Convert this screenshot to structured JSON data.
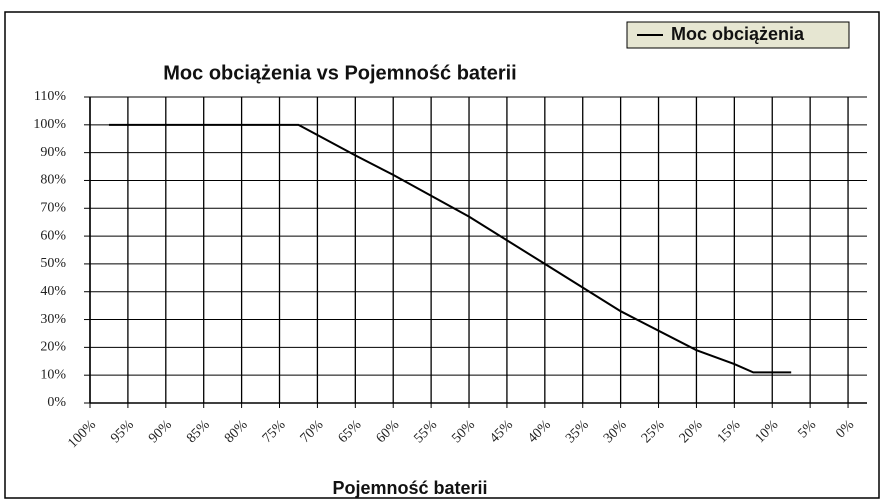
{
  "chart_data": {
    "type": "line",
    "title": "Moc obciążenia vs Pojemność baterii",
    "x_label": "Pojemność baterii",
    "series": [
      {
        "name": "Moc obciążenia",
        "color": "#000000",
        "x": [
          97.5,
          72.5,
          65,
          60,
          50,
          40,
          30,
          20,
          15,
          12.5,
          7.5
        ],
        "values": [
          100,
          100,
          89,
          82,
          67,
          50,
          33,
          19,
          14,
          11,
          11
        ]
      }
    ],
    "xlim": [
      100,
      -2.5
    ],
    "xticks": [
      {
        "value": 100,
        "label": "100%"
      },
      {
        "value": 95,
        "label": "95%"
      },
      {
        "value": 90,
        "label": "90%"
      },
      {
        "value": 85,
        "label": "85%"
      },
      {
        "value": 80,
        "label": "80%"
      },
      {
        "value": 75,
        "label": "75%"
      },
      {
        "value": 70,
        "label": "70%"
      },
      {
        "value": 65,
        "label": "65%"
      },
      {
        "value": 60,
        "label": "60%"
      },
      {
        "value": 55,
        "label": "55%"
      },
      {
        "value": 50,
        "label": "50%"
      },
      {
        "value": 45,
        "label": "45%"
      },
      {
        "value": 40,
        "label": "40%"
      },
      {
        "value": 35,
        "label": "35%"
      },
      {
        "value": 30,
        "label": "30%"
      },
      {
        "value": 25,
        "label": "25%"
      },
      {
        "value": 20,
        "label": "20%"
      },
      {
        "value": 15,
        "label": "15%"
      },
      {
        "value": 10,
        "label": "10%"
      },
      {
        "value": 5,
        "label": "5%"
      },
      {
        "value": 0,
        "label": "0%"
      }
    ],
    "ylim": [
      0,
      110
    ],
    "yticks": [
      {
        "value": 0,
        "label": "0%"
      },
      {
        "value": 10,
        "label": "10%"
      },
      {
        "value": 20,
        "label": "20%"
      },
      {
        "value": 30,
        "label": "30%"
      },
      {
        "value": 40,
        "label": "40%"
      },
      {
        "value": 50,
        "label": "50%"
      },
      {
        "value": 60,
        "label": "60%"
      },
      {
        "value": 70,
        "label": "70%"
      },
      {
        "value": 80,
        "label": "80%"
      },
      {
        "value": 90,
        "label": "90%"
      },
      {
        "value": 100,
        "label": "100%"
      },
      {
        "value": 110,
        "label": "110%"
      }
    ],
    "grid": true,
    "legend": "top-right"
  }
}
